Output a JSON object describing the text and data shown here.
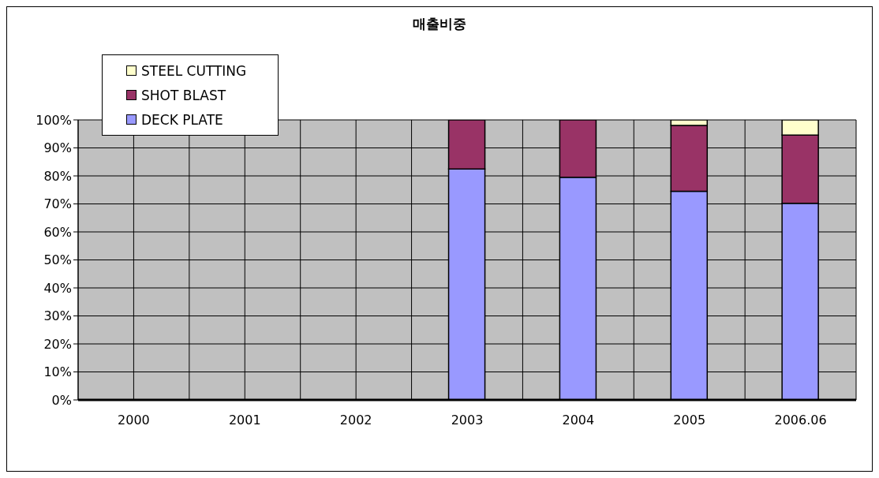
{
  "chart_data": {
    "type": "bar",
    "title": "매출비중",
    "stacked": true,
    "categories": [
      "2000",
      "2001",
      "2002",
      "2003",
      "2004",
      "2005",
      "2006.06"
    ],
    "series": [
      {
        "name": "DECK PLATE",
        "color": "#9999ff",
        "values": [
          null,
          null,
          null,
          82.5,
          79.5,
          74.5,
          70.2
        ]
      },
      {
        "name": "SHOT BLAST",
        "color": "#993366",
        "values": [
          null,
          null,
          null,
          17.5,
          20.5,
          23.5,
          24.4
        ]
      },
      {
        "name": "STEEL CUTTING",
        "color": "#ffffcc",
        "values": [
          null,
          null,
          null,
          null,
          null,
          2.0,
          5.4
        ]
      }
    ],
    "ylim": [
      0,
      100
    ],
    "yticks": [
      {
        "value": 0,
        "label": "0%"
      },
      {
        "value": 10,
        "label": "10%"
      },
      {
        "value": 20,
        "label": "20%"
      },
      {
        "value": 30,
        "label": "30%"
      },
      {
        "value": 40,
        "label": "40%"
      },
      {
        "value": 50,
        "label": "50%"
      },
      {
        "value": 60,
        "label": "60%"
      },
      {
        "value": 70,
        "label": "70%"
      },
      {
        "value": 80,
        "label": "80%"
      },
      {
        "value": 90,
        "label": "90%"
      },
      {
        "value": 100,
        "label": "100%"
      }
    ],
    "grid": true,
    "legend": "top left"
  }
}
